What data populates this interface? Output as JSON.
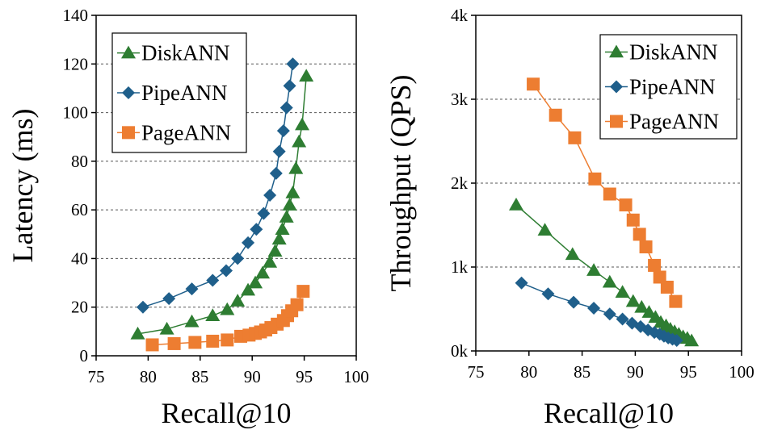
{
  "chart_data": [
    {
      "type": "line",
      "xlabel": "Recall@10",
      "ylabel": "Latency (ms)",
      "xlim": [
        75,
        100
      ],
      "ylim": [
        0,
        140
      ],
      "xticks": [
        "75",
        "80",
        "85",
        "90",
        "95",
        "100"
      ],
      "yticks": [
        "0",
        "20",
        "40",
        "60",
        "80",
        "100",
        "120",
        "140"
      ],
      "grid": "horizontal-dashed",
      "legend_position": "top-left",
      "series": [
        {
          "name": "DiskANN",
          "color": "#2e7d32",
          "marker": "triangle",
          "points": [
            [
              79.0,
              9
            ],
            [
              81.8,
              11
            ],
            [
              84.2,
              14
            ],
            [
              86.2,
              16.5
            ],
            [
              87.6,
              19
            ],
            [
              88.6,
              22.5
            ],
            [
              89.6,
              27
            ],
            [
              90.3,
              30
            ],
            [
              91.0,
              34
            ],
            [
              91.7,
              38.5
            ],
            [
              92.2,
              43
            ],
            [
              92.6,
              48
            ],
            [
              92.9,
              52
            ],
            [
              93.3,
              57
            ],
            [
              93.6,
              62
            ],
            [
              93.9,
              67
            ],
            [
              94.2,
              77
            ],
            [
              94.5,
              88
            ],
            [
              94.8,
              95
            ],
            [
              95.2,
              115
            ]
          ]
        },
        {
          "name": "PipeANN",
          "color": "#1f5f8b",
          "marker": "diamond",
          "points": [
            [
              79.5,
              20
            ],
            [
              82.0,
              23.5
            ],
            [
              84.2,
              27.5
            ],
            [
              86.2,
              31
            ],
            [
              87.5,
              35
            ],
            [
              88.6,
              40
            ],
            [
              89.6,
              46.5
            ],
            [
              90.4,
              52
            ],
            [
              91.1,
              58.5
            ],
            [
              91.7,
              66
            ],
            [
              92.3,
              75
            ],
            [
              92.6,
              84
            ],
            [
              93.0,
              92.5
            ],
            [
              93.3,
              102
            ],
            [
              93.6,
              111
            ],
            [
              93.9,
              120
            ]
          ]
        },
        {
          "name": "PageANN",
          "color": "#ed7d31",
          "marker": "square",
          "points": [
            [
              80.4,
              4.5
            ],
            [
              82.5,
              5
            ],
            [
              84.5,
              5.5
            ],
            [
              86.2,
              6
            ],
            [
              87.6,
              6.5
            ],
            [
              88.9,
              8
            ],
            [
              89.7,
              8.5
            ],
            [
              90.3,
              9.2
            ],
            [
              90.8,
              9.8
            ],
            [
              91.3,
              10.6
            ],
            [
              91.8,
              11.6
            ],
            [
              92.4,
              13
            ],
            [
              93.0,
              14.5
            ],
            [
              93.4,
              16.5
            ],
            [
              93.8,
              18.5
            ],
            [
              94.3,
              21
            ],
            [
              94.9,
              26.5
            ]
          ]
        }
      ]
    },
    {
      "type": "line",
      "xlabel": "Recall@10",
      "ylabel": "Throughput (QPS)",
      "xlim": [
        75,
        100
      ],
      "ylim": [
        0,
        4000
      ],
      "xticks": [
        "75",
        "80",
        "85",
        "90",
        "95",
        "100"
      ],
      "yticks": [
        "0k",
        "1k",
        "2k",
        "3k",
        "4k"
      ],
      "grid": "horizontal-dashed",
      "legend_position": "top-right",
      "series": [
        {
          "name": "DiskANN",
          "color": "#2e7d32",
          "marker": "triangle",
          "points": [
            [
              78.8,
              1740
            ],
            [
              81.5,
              1440
            ],
            [
              84.1,
              1150
            ],
            [
              86.1,
              960
            ],
            [
              87.6,
              820
            ],
            [
              88.8,
              700
            ],
            [
              89.8,
              590
            ],
            [
              90.6,
              520
            ],
            [
              91.3,
              460
            ],
            [
              91.9,
              400
            ],
            [
              92.4,
              340
            ],
            [
              92.9,
              300
            ],
            [
              93.3,
              260
            ],
            [
              93.7,
              230
            ],
            [
              94.1,
              200
            ],
            [
              94.5,
              170
            ],
            [
              94.9,
              150
            ],
            [
              95.3,
              120
            ]
          ]
        },
        {
          "name": "PipeANN",
          "color": "#1f5f8b",
          "marker": "diamond",
          "points": [
            [
              79.3,
              810
            ],
            [
              81.8,
              680
            ],
            [
              84.2,
              580
            ],
            [
              86.1,
              510
            ],
            [
              87.6,
              440
            ],
            [
              88.8,
              380
            ],
            [
              89.7,
              330
            ],
            [
              90.5,
              290
            ],
            [
              91.2,
              250
            ],
            [
              91.8,
              220
            ],
            [
              92.3,
              200
            ],
            [
              92.7,
              175
            ],
            [
              93.1,
              155
            ],
            [
              93.5,
              140
            ],
            [
              93.9,
              125
            ]
          ]
        },
        {
          "name": "PageANN",
          "color": "#ed7d31",
          "marker": "square",
          "points": [
            [
              80.4,
              3180
            ],
            [
              82.5,
              2810
            ],
            [
              84.3,
              2540
            ],
            [
              86.2,
              2050
            ],
            [
              87.6,
              1870
            ],
            [
              89.1,
              1740
            ],
            [
              89.8,
              1560
            ],
            [
              90.4,
              1390
            ],
            [
              91.0,
              1240
            ],
            [
              91.8,
              1020
            ],
            [
              92.3,
              880
            ],
            [
              93.0,
              760
            ],
            [
              93.8,
              590
            ]
          ]
        }
      ]
    }
  ]
}
